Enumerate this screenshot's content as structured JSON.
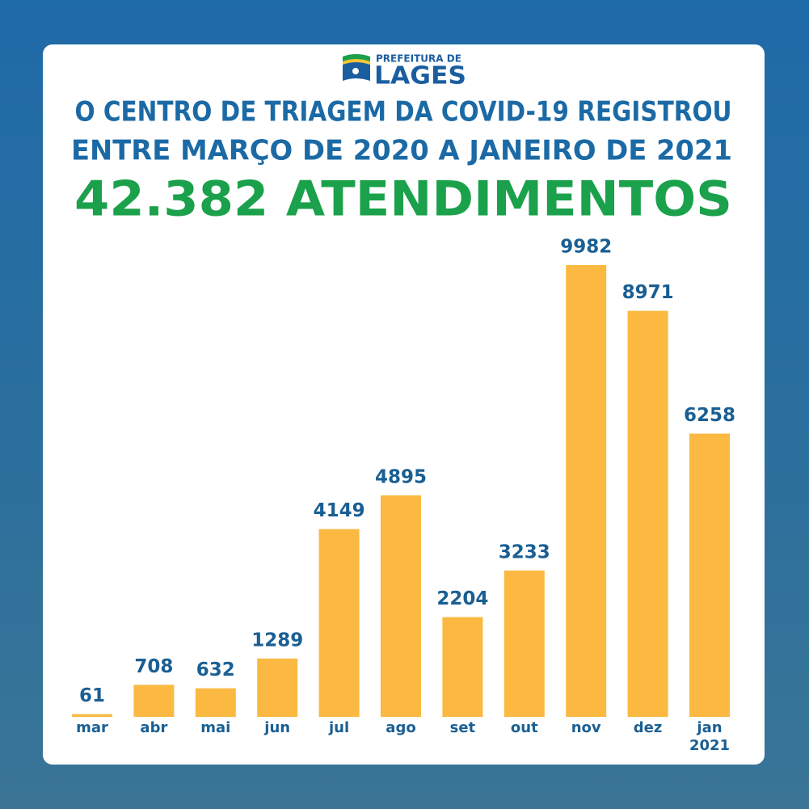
{
  "chart_data": {
    "type": "bar",
    "header": "PREFEITURA DE",
    "brand": "LAGES",
    "title": [
      "O CENTRO DE TRIAGEM DA COVID-19 REGISTROU",
      "ENTRE MARÇO DE 2020 A JANEIRO DE 2021"
    ],
    "subtitle": "42.382 ATENDIMENTOS",
    "categories": [
      "mar",
      "abr",
      "mai",
      "jun",
      "jul",
      "ago",
      "set",
      "out",
      "nov",
      "dez",
      "jan\n2021"
    ],
    "values": [
      61,
      708,
      632,
      1289,
      4149,
      4895,
      2204,
      3233,
      9982,
      8971,
      6258
    ],
    "color": "#fbb941"
  }
}
